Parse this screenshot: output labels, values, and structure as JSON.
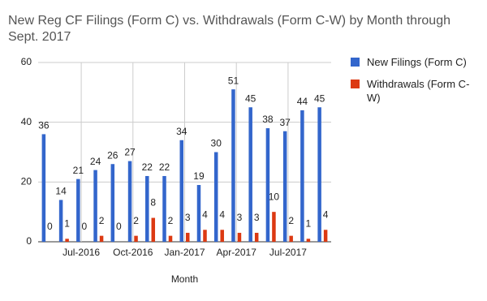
{
  "chart_data": {
    "type": "bar",
    "title": "New Reg CF Filings (Form C) vs. Withdrawals (Form C-W) by Month through Sept. 2017",
    "x_label": "Month",
    "categories": [
      null,
      null,
      "Jul-2016",
      null,
      null,
      "Oct-2016",
      null,
      null,
      "Jan-2017",
      null,
      null,
      "Apr-2017",
      null,
      null,
      "Jul-2017",
      null,
      null
    ],
    "series": [
      {
        "name": "New Filings (Form C)",
        "color": "#3366cc",
        "values": [
          36,
          14,
          21,
          24,
          26,
          27,
          22,
          22,
          34,
          19,
          30,
          51,
          45,
          38,
          37,
          44,
          45
        ]
      },
      {
        "name": "Withdrawals (Form C-W)",
        "color": "#dc3912",
        "values": [
          0,
          1,
          0,
          2,
          0,
          2,
          8,
          2,
          3,
          4,
          4,
          3,
          3,
          10,
          2,
          1,
          4
        ]
      }
    ],
    "ylim": [
      0,
      60
    ],
    "yticks": [
      0,
      20,
      40,
      60
    ],
    "grid": true,
    "legend": "right"
  }
}
